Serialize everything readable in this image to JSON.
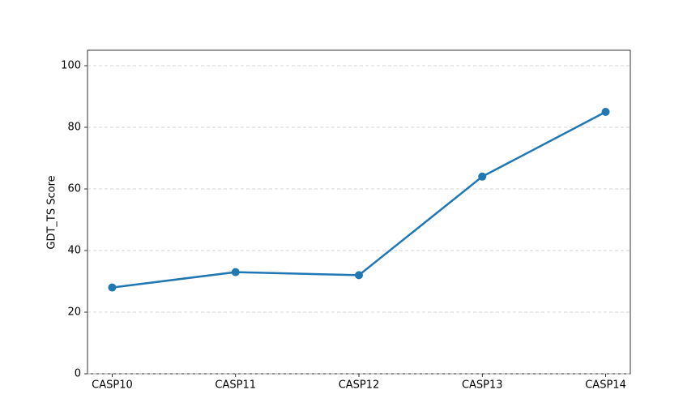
{
  "chart_data": {
    "type": "line",
    "y_label": "GDT_TS Score",
    "categories": [
      "CASP10",
      "CASP11",
      "CASP12",
      "CASP13",
      "CASP14"
    ],
    "values": [
      28,
      33,
      32,
      64,
      85
    ],
    "color": "#1f77b4",
    "ylim": [
      0,
      105
    ],
    "yticks": [
      0,
      20,
      40,
      60,
      80,
      100
    ],
    "grid": true
  }
}
